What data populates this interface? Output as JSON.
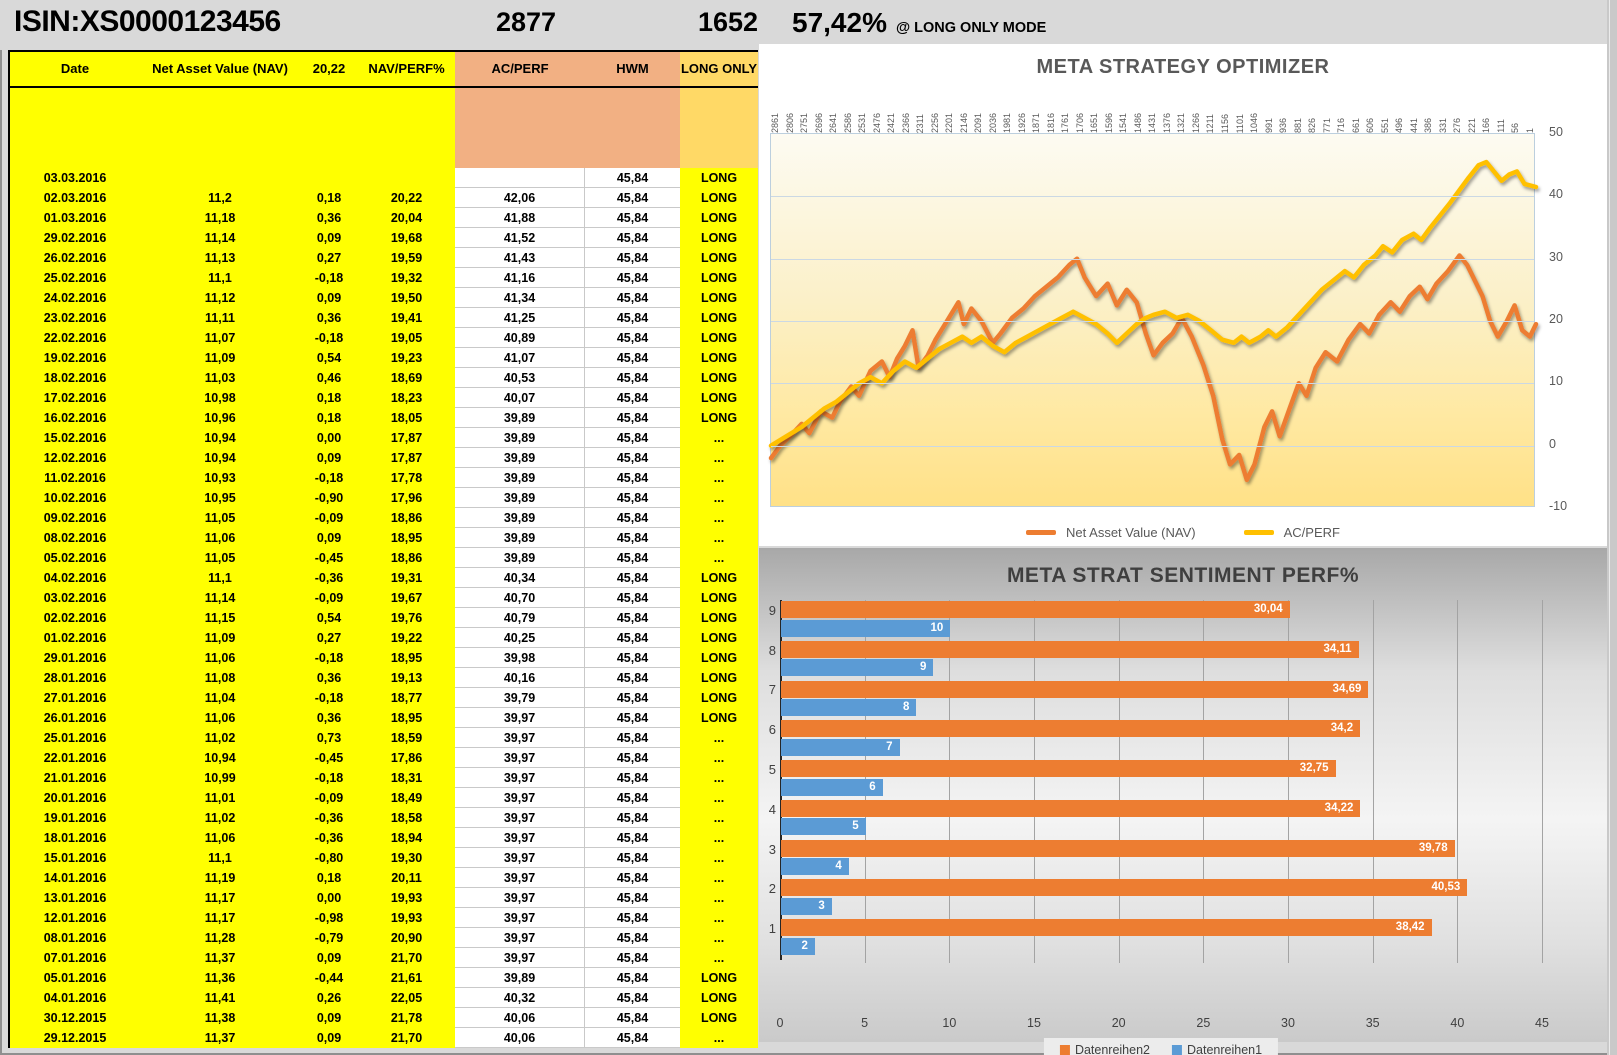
{
  "header": {
    "isin": "ISIN:XS0000123456",
    "value1": "2877",
    "value2": "1652",
    "percent": "57,42%",
    "mode": "@ LONG ONLY MODE"
  },
  "table": {
    "columns": [
      "Date",
      "Net Asset Value (NAV)",
      "20,22",
      "NAV/PERF%",
      "AC/PERF",
      "HWM",
      "LONG ONLY"
    ],
    "rows": [
      [
        "03.03.2016",
        "",
        "",
        "",
        "",
        "45,84",
        "LONG"
      ],
      [
        "02.03.2016",
        "11,2",
        "0,18",
        "20,22",
        "42,06",
        "45,84",
        "LONG"
      ],
      [
        "01.03.2016",
        "11,18",
        "0,36",
        "20,04",
        "41,88",
        "45,84",
        "LONG"
      ],
      [
        "29.02.2016",
        "11,14",
        "0,09",
        "19,68",
        "41,52",
        "45,84",
        "LONG"
      ],
      [
        "26.02.2016",
        "11,13",
        "0,27",
        "19,59",
        "41,43",
        "45,84",
        "LONG"
      ],
      [
        "25.02.2016",
        "11,1",
        "-0,18",
        "19,32",
        "41,16",
        "45,84",
        "LONG"
      ],
      [
        "24.02.2016",
        "11,12",
        "0,09",
        "19,50",
        "41,34",
        "45,84",
        "LONG"
      ],
      [
        "23.02.2016",
        "11,11",
        "0,36",
        "19,41",
        "41,25",
        "45,84",
        "LONG"
      ],
      [
        "22.02.2016",
        "11,07",
        "-0,18",
        "19,05",
        "40,89",
        "45,84",
        "LONG"
      ],
      [
        "19.02.2016",
        "11,09",
        "0,54",
        "19,23",
        "41,07",
        "45,84",
        "LONG"
      ],
      [
        "18.02.2016",
        "11,03",
        "0,46",
        "18,69",
        "40,53",
        "45,84",
        "LONG"
      ],
      [
        "17.02.2016",
        "10,98",
        "0,18",
        "18,23",
        "40,07",
        "45,84",
        "LONG"
      ],
      [
        "16.02.2016",
        "10,96",
        "0,18",
        "18,05",
        "39,89",
        "45,84",
        "LONG"
      ],
      [
        "15.02.2016",
        "10,94",
        "0,00",
        "17,87",
        "39,89",
        "45,84",
        "..."
      ],
      [
        "12.02.2016",
        "10,94",
        "0,09",
        "17,87",
        "39,89",
        "45,84",
        "..."
      ],
      [
        "11.02.2016",
        "10,93",
        "-0,18",
        "17,78",
        "39,89",
        "45,84",
        "..."
      ],
      [
        "10.02.2016",
        "10,95",
        "-0,90",
        "17,96",
        "39,89",
        "45,84",
        "..."
      ],
      [
        "09.02.2016",
        "11,05",
        "-0,09",
        "18,86",
        "39,89",
        "45,84",
        "..."
      ],
      [
        "08.02.2016",
        "11,06",
        "0,09",
        "18,95",
        "39,89",
        "45,84",
        "..."
      ],
      [
        "05.02.2016",
        "11,05",
        "-0,45",
        "18,86",
        "39,89",
        "45,84",
        "..."
      ],
      [
        "04.02.2016",
        "11,1",
        "-0,36",
        "19,31",
        "40,34",
        "45,84",
        "LONG"
      ],
      [
        "03.02.2016",
        "11,14",
        "-0,09",
        "19,67",
        "40,70",
        "45,84",
        "LONG"
      ],
      [
        "02.02.2016",
        "11,15",
        "0,54",
        "19,76",
        "40,79",
        "45,84",
        "LONG"
      ],
      [
        "01.02.2016",
        "11,09",
        "0,27",
        "19,22",
        "40,25",
        "45,84",
        "LONG"
      ],
      [
        "29.01.2016",
        "11,06",
        "-0,18",
        "18,95",
        "39,98",
        "45,84",
        "LONG"
      ],
      [
        "28.01.2016",
        "11,08",
        "0,36",
        "19,13",
        "40,16",
        "45,84",
        "LONG"
      ],
      [
        "27.01.2016",
        "11,04",
        "-0,18",
        "18,77",
        "39,79",
        "45,84",
        "LONG"
      ],
      [
        "26.01.2016",
        "11,06",
        "0,36",
        "18,95",
        "39,97",
        "45,84",
        "LONG"
      ],
      [
        "25.01.2016",
        "11,02",
        "0,73",
        "18,59",
        "39,97",
        "45,84",
        "..."
      ],
      [
        "22.01.2016",
        "10,94",
        "-0,45",
        "17,86",
        "39,97",
        "45,84",
        "..."
      ],
      [
        "21.01.2016",
        "10,99",
        "-0,18",
        "18,31",
        "39,97",
        "45,84",
        "..."
      ],
      [
        "20.01.2016",
        "11,01",
        "-0,09",
        "18,49",
        "39,97",
        "45,84",
        "..."
      ],
      [
        "19.01.2016",
        "11,02",
        "-0,36",
        "18,58",
        "39,97",
        "45,84",
        "..."
      ],
      [
        "18.01.2016",
        "11,06",
        "-0,36",
        "18,94",
        "39,97",
        "45,84",
        "..."
      ],
      [
        "15.01.2016",
        "11,1",
        "-0,80",
        "19,30",
        "39,97",
        "45,84",
        "..."
      ],
      [
        "14.01.2016",
        "11,19",
        "0,18",
        "20,11",
        "39,97",
        "45,84",
        "..."
      ],
      [
        "13.01.2016",
        "11,17",
        "0,00",
        "19,93",
        "39,97",
        "45,84",
        "..."
      ],
      [
        "12.01.2016",
        "11,17",
        "-0,98",
        "19,93",
        "39,97",
        "45,84",
        "..."
      ],
      [
        "08.01.2016",
        "11,28",
        "-0,79",
        "20,90",
        "39,97",
        "45,84",
        "..."
      ],
      [
        "07.01.2016",
        "11,37",
        "0,09",
        "21,70",
        "39,97",
        "45,84",
        "..."
      ],
      [
        "05.01.2016",
        "11,36",
        "-0,44",
        "21,61",
        "39,89",
        "45,84",
        "LONG"
      ],
      [
        "04.01.2016",
        "11,41",
        "0,26",
        "22,05",
        "40,32",
        "45,84",
        "LONG"
      ],
      [
        "30.12.2015",
        "11,38",
        "0,09",
        "21,78",
        "40,06",
        "45,84",
        "LONG"
      ],
      [
        "29.12.2015",
        "11,37",
        "0,09",
        "21,70",
        "40,06",
        "45,84",
        "..."
      ]
    ]
  },
  "chart_data": [
    {
      "type": "line",
      "title": "META STRATEGY OPTIMIZER",
      "x_labels": [
        "2861",
        "2806",
        "2751",
        "2696",
        "2641",
        "2586",
        "2531",
        "2476",
        "2421",
        "2366",
        "2311",
        "2256",
        "2201",
        "2146",
        "2091",
        "2036",
        "1981",
        "1926",
        "1871",
        "1816",
        "1761",
        "1706",
        "1651",
        "1596",
        "1541",
        "1486",
        "1431",
        "1376",
        "1321",
        "1266",
        "1211",
        "1156",
        "1101",
        "1046",
        "991",
        "936",
        "881",
        "826",
        "771",
        "716",
        "661",
        "606",
        "551",
        "496",
        "441",
        "386",
        "331",
        "276",
        "221",
        "166",
        "111",
        "56",
        "1"
      ],
      "y_ticks": [
        50,
        40,
        30,
        20,
        10,
        0,
        -10
      ],
      "ylim": [
        -10,
        50
      ],
      "grid": "horizontal",
      "legend_position": "bottom",
      "series": [
        {
          "name": "Net Asset Value (NAV)",
          "color": "#ED7D31",
          "points": [
            [
              0,
              -2
            ],
            [
              0.012,
              0
            ],
            [
              0.025,
              1.5
            ],
            [
              0.04,
              3.5
            ],
            [
              0.05,
              2
            ],
            [
              0.065,
              5.5
            ],
            [
              0.08,
              4.5
            ],
            [
              0.09,
              7
            ],
            [
              0.105,
              9.5
            ],
            [
              0.115,
              8
            ],
            [
              0.13,
              12
            ],
            [
              0.145,
              13.5
            ],
            [
              0.155,
              11
            ],
            [
              0.165,
              14
            ],
            [
              0.175,
              16
            ],
            [
              0.185,
              18.5
            ],
            [
              0.193,
              12.5
            ],
            [
              0.205,
              14.5
            ],
            [
              0.215,
              17
            ],
            [
              0.23,
              20
            ],
            [
              0.245,
              23
            ],
            [
              0.252,
              19.5
            ],
            [
              0.262,
              22
            ],
            [
              0.275,
              20
            ],
            [
              0.29,
              16.5
            ],
            [
              0.3,
              18
            ],
            [
              0.315,
              20.5
            ],
            [
              0.33,
              22
            ],
            [
              0.345,
              24
            ],
            [
              0.36,
              25.5
            ],
            [
              0.375,
              27
            ],
            [
              0.39,
              29
            ],
            [
              0.4,
              30
            ],
            [
              0.41,
              27
            ],
            [
              0.425,
              24
            ],
            [
              0.44,
              26
            ],
            [
              0.452,
              22.5
            ],
            [
              0.465,
              25
            ],
            [
              0.478,
              23
            ],
            [
              0.49,
              18
            ],
            [
              0.5,
              14.5
            ],
            [
              0.512,
              16.5
            ],
            [
              0.525,
              18
            ],
            [
              0.537,
              20.5
            ],
            [
              0.55,
              17.5
            ],
            [
              0.565,
              13
            ],
            [
              0.578,
              8
            ],
            [
              0.59,
              1
            ],
            [
              0.6,
              -3
            ],
            [
              0.612,
              -1.5
            ],
            [
              0.622,
              -5.5
            ],
            [
              0.632,
              -3
            ],
            [
              0.645,
              3
            ],
            [
              0.655,
              5.5
            ],
            [
              0.665,
              1.5
            ],
            [
              0.678,
              6
            ],
            [
              0.69,
              10
            ],
            [
              0.7,
              8
            ],
            [
              0.712,
              12.5
            ],
            [
              0.725,
              15
            ],
            [
              0.74,
              13.5
            ],
            [
              0.755,
              17
            ],
            [
              0.77,
              19.5
            ],
            [
              0.782,
              18
            ],
            [
              0.795,
              21
            ],
            [
              0.81,
              23
            ],
            [
              0.822,
              21.5
            ],
            [
              0.835,
              24
            ],
            [
              0.848,
              25.5
            ],
            [
              0.858,
              23.5
            ],
            [
              0.87,
              26
            ],
            [
              0.885,
              28
            ],
            [
              0.9,
              30.5
            ],
            [
              0.91,
              29
            ],
            [
              0.92,
              26.5
            ],
            [
              0.93,
              24
            ],
            [
              0.94,
              20
            ],
            [
              0.95,
              17.5
            ],
            [
              0.962,
              20
            ],
            [
              0.972,
              22.5
            ],
            [
              0.982,
              18.5
            ],
            [
              0.992,
              17.5
            ],
            [
              1,
              19.5
            ]
          ]
        },
        {
          "name": "AC/PERF",
          "color": "#FFC000",
          "points": [
            [
              0,
              0
            ],
            [
              0.02,
              1.5
            ],
            [
              0.04,
              3
            ],
            [
              0.055,
              4.5
            ],
            [
              0.07,
              6
            ],
            [
              0.085,
              7
            ],
            [
              0.1,
              8.5
            ],
            [
              0.115,
              10
            ],
            [
              0.13,
              11
            ],
            [
              0.145,
              10
            ],
            [
              0.16,
              12
            ],
            [
              0.175,
              13.5
            ],
            [
              0.19,
              12.5
            ],
            [
              0.205,
              14
            ],
            [
              0.22,
              15.5
            ],
            [
              0.235,
              16.5
            ],
            [
              0.25,
              17.5
            ],
            [
              0.262,
              16.5
            ],
            [
              0.275,
              17.5
            ],
            [
              0.29,
              16
            ],
            [
              0.305,
              15
            ],
            [
              0.32,
              16.5
            ],
            [
              0.335,
              17.5
            ],
            [
              0.35,
              18.5
            ],
            [
              0.365,
              19.5
            ],
            [
              0.38,
              20.5
            ],
            [
              0.395,
              21.5
            ],
            [
              0.41,
              20.5
            ],
            [
              0.425,
              19.5
            ],
            [
              0.44,
              18
            ],
            [
              0.452,
              16.5
            ],
            [
              0.465,
              18
            ],
            [
              0.478,
              19.5
            ],
            [
              0.49,
              20.5
            ],
            [
              0.5,
              21
            ],
            [
              0.515,
              21.5
            ],
            [
              0.53,
              20.5
            ],
            [
              0.545,
              21
            ],
            [
              0.56,
              20
            ],
            [
              0.575,
              18.5
            ],
            [
              0.59,
              17
            ],
            [
              0.605,
              16.5
            ],
            [
              0.615,
              17.5
            ],
            [
              0.625,
              16.5
            ],
            [
              0.64,
              17.5
            ],
            [
              0.65,
              18.5
            ],
            [
              0.66,
              17.5
            ],
            [
              0.675,
              19
            ],
            [
              0.69,
              21
            ],
            [
              0.705,
              23
            ],
            [
              0.72,
              25
            ],
            [
              0.735,
              26.5
            ],
            [
              0.75,
              28
            ],
            [
              0.762,
              27
            ],
            [
              0.775,
              29
            ],
            [
              0.79,
              30.5
            ],
            [
              0.8,
              32
            ],
            [
              0.812,
              31
            ],
            [
              0.825,
              33
            ],
            [
              0.84,
              34
            ],
            [
              0.85,
              33
            ],
            [
              0.862,
              35
            ],
            [
              0.875,
              37
            ],
            [
              0.888,
              39
            ],
            [
              0.9,
              41
            ],
            [
              0.912,
              43
            ],
            [
              0.925,
              45
            ],
            [
              0.935,
              45.5
            ],
            [
              0.945,
              44
            ],
            [
              0.955,
              42.5
            ],
            [
              0.965,
              43.5
            ],
            [
              0.975,
              44
            ],
            [
              0.985,
              42
            ],
            [
              1,
              41.5
            ]
          ]
        }
      ]
    },
    {
      "type": "bar",
      "orientation": "horizontal",
      "title": "META STRAT SENTIMENT PERF%",
      "categories": [
        "9",
        "8",
        "7",
        "6",
        "5",
        "4",
        "3",
        "2",
        "1"
      ],
      "xlim": [
        0,
        45
      ],
      "x_ticks": [
        0,
        5,
        10,
        15,
        20,
        25,
        30,
        35,
        40,
        45
      ],
      "grid": "vertical",
      "legend_position": "bottom",
      "series": [
        {
          "name": "Datenreihen2",
          "color": "#ED7D31",
          "values": [
            30.04,
            34.11,
            34.69,
            34.2,
            32.75,
            34.22,
            39.78,
            40.53,
            38.42
          ],
          "labels": [
            "30,04",
            "34,11",
            "34,69",
            "34,2",
            "32,75",
            "34,22",
            "39,78",
            "40,53",
            "38,42"
          ]
        },
        {
          "name": "Datenreihen1",
          "color": "#5B9BD5",
          "values": [
            10,
            9,
            8,
            7,
            6,
            5,
            4,
            3,
            2
          ],
          "labels": [
            "10",
            "9",
            "8",
            "7",
            "6",
            "5",
            "4",
            "3",
            "2"
          ]
        }
      ]
    }
  ]
}
